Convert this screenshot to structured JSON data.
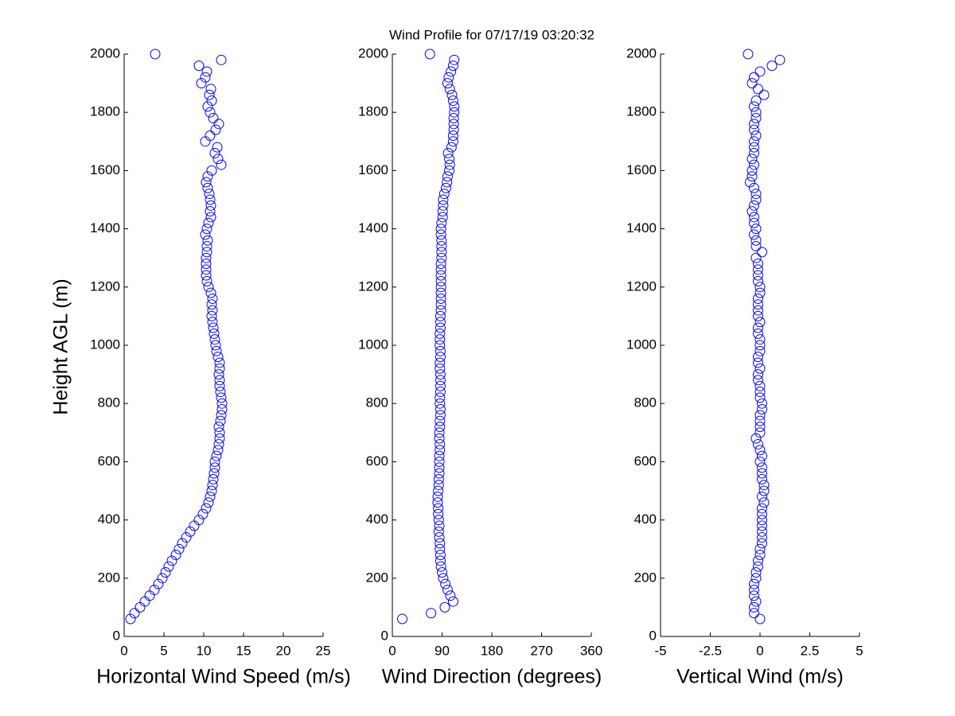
{
  "chart_data": [
    {
      "type": "scatter",
      "x_label": "Horizontal Wind Speed (m/s)",
      "y_label": "Height AGL (m)",
      "xlim": [
        0,
        25
      ],
      "xticks": [
        0,
        5,
        10,
        15,
        20,
        25
      ],
      "ylim": [
        0,
        2000
      ],
      "yticks": [
        0,
        200,
        400,
        600,
        800,
        1000,
        1200,
        1400,
        1600,
        1800,
        2000
      ],
      "x": [
        0.8,
        1.3,
        2,
        2.6,
        3.2,
        3.8,
        4.3,
        4.8,
        5.2,
        5.6,
        6,
        6.5,
        6.9,
        7.3,
        7.8,
        8.3,
        8.8,
        9.4,
        9.9,
        10.3,
        10.6,
        10.8,
        11,
        11.1,
        11.2,
        11.3,
        11.4,
        11.4,
        11.6,
        11.8,
        11.9,
        12,
        12,
        11.9,
        12.1,
        12.2,
        12.3,
        12.3,
        12.2,
        12.1,
        12,
        12,
        11.9,
        12,
        12,
        11.8,
        11.6,
        11.5,
        11.4,
        11.3,
        11.2,
        11.1,
        11,
        11.1,
        11,
        11.1,
        10.9,
        10.6,
        10.4,
        10.3,
        10.3,
        10.3,
        10.3,
        10.4,
        10.4,
        10.5,
        10.2,
        10.4,
        10.6,
        10.9,
        10.8,
        10.9,
        10.8,
        10.7,
        10.5,
        10.3,
        10.5,
        11,
        12.2,
        11.8,
        11.4,
        11.7,
        10.2,
        10.8,
        11.5,
        11.9,
        11.2,
        10.8,
        10.5,
        11,
        10.7,
        10.9,
        9.7,
        10.2,
        10.4,
        9.4,
        12.2,
        3.9
      ],
      "series": [
        {
          "color": "#0000ff",
          "values": [
            60,
            80,
            100,
            120,
            140,
            160,
            180,
            200,
            220,
            240,
            260,
            280,
            300,
            320,
            340,
            360,
            380,
            400,
            420,
            440,
            460,
            480,
            500,
            520,
            540,
            560,
            580,
            600,
            620,
            640,
            660,
            680,
            700,
            720,
            740,
            760,
            780,
            800,
            820,
            840,
            860,
            880,
            900,
            920,
            940,
            960,
            980,
            1000,
            1020,
            1040,
            1060,
            1080,
            1100,
            1120,
            1140,
            1160,
            1180,
            1200,
            1220,
            1240,
            1260,
            1280,
            1300,
            1320,
            1340,
            1360,
            1380,
            1400,
            1420,
            1440,
            1460,
            1480,
            1500,
            1520,
            1540,
            1560,
            1580,
            1600,
            1620,
            1640,
            1660,
            1680,
            1700,
            1720,
            1740,
            1760,
            1780,
            1800,
            1820,
            1840,
            1860,
            1880,
            1900,
            1920,
            1940,
            1960,
            1980,
            2000
          ]
        }
      ]
    },
    {
      "type": "scatter",
      "title": "Wind Profile for  07/17/19 03:20:32",
      "x_label": "Wind Direction (degrees)",
      "xlim": [
        0,
        360
      ],
      "xticks": [
        0,
        90,
        180,
        270,
        360
      ],
      "ylim": [
        0,
        2000
      ],
      "yticks": [
        0,
        200,
        400,
        600,
        800,
        1000,
        1200,
        1400,
        1600,
        1800,
        2000
      ],
      "x": [
        18,
        70,
        95,
        110,
        105,
        100,
        96,
        92,
        90,
        88,
        87,
        87,
        86,
        86,
        85,
        84,
        85,
        84,
        83,
        83,
        82,
        82,
        83,
        84,
        84,
        85,
        85,
        85,
        85,
        86,
        86,
        85,
        85,
        86,
        86,
        87,
        87,
        86,
        86,
        87,
        87,
        87,
        87,
        86,
        86,
        87,
        87,
        86,
        86,
        86,
        87,
        87,
        87,
        88,
        88,
        88,
        88,
        88,
        88,
        88,
        88,
        88,
        89,
        89,
        89,
        89,
        88,
        88,
        89,
        91,
        91,
        92,
        92,
        94,
        97,
        99,
        100,
        103,
        104,
        103,
        101,
        107,
        110,
        110,
        111,
        111,
        111,
        112,
        112,
        110,
        108,
        104,
        100,
        102,
        106,
        110,
        112,
        68
      ],
      "series": [
        {
          "color": "#0000ff",
          "values": [
            60,
            80,
            100,
            120,
            140,
            160,
            180,
            200,
            220,
            240,
            260,
            280,
            300,
            320,
            340,
            360,
            380,
            400,
            420,
            440,
            460,
            480,
            500,
            520,
            540,
            560,
            580,
            600,
            620,
            640,
            660,
            680,
            700,
            720,
            740,
            760,
            780,
            800,
            820,
            840,
            860,
            880,
            900,
            920,
            940,
            960,
            980,
            1000,
            1020,
            1040,
            1060,
            1080,
            1100,
            1120,
            1140,
            1160,
            1180,
            1200,
            1220,
            1240,
            1260,
            1280,
            1300,
            1320,
            1340,
            1360,
            1380,
            1400,
            1420,
            1440,
            1460,
            1480,
            1500,
            1520,
            1540,
            1560,
            1580,
            1600,
            1620,
            1640,
            1660,
            1680,
            1700,
            1720,
            1740,
            1760,
            1780,
            1800,
            1820,
            1840,
            1860,
            1880,
            1900,
            1920,
            1940,
            1960,
            1980,
            2000
          ]
        }
      ]
    },
    {
      "type": "scatter",
      "x_label": "Vertical Wind (m/s)",
      "xlim": [
        -5,
        5
      ],
      "xticks": [
        -5,
        -2.5,
        0,
        2.5,
        5
      ],
      "ylim": [
        0,
        2000
      ],
      "yticks": [
        0,
        200,
        400,
        600,
        800,
        1000,
        1200,
        1400,
        1600,
        1800,
        2000
      ],
      "x": [
        0,
        -0.3,
        -0.3,
        -0.2,
        -0.3,
        -0.3,
        -0.3,
        -0.2,
        -0.2,
        -0.1,
        -0.1,
        0,
        0,
        0.1,
        0.1,
        0.1,
        0.1,
        0.1,
        0.1,
        0.1,
        0.2,
        0.1,
        0.2,
        0.2,
        0.1,
        0.1,
        0.1,
        0,
        0.1,
        0,
        -0.1,
        -0.2,
        0,
        0,
        0,
        0,
        0.1,
        0.1,
        0,
        0,
        0,
        -0.1,
        -0.1,
        0,
        -0.1,
        -0.1,
        0,
        0,
        0,
        -0.1,
        -0.1,
        0,
        -0.1,
        -0.1,
        -0.1,
        -0.1,
        0,
        0,
        -0.1,
        -0.1,
        -0.1,
        -0.1,
        -0.2,
        0.1,
        -0.2,
        -0.2,
        -0.3,
        -0.2,
        -0.3,
        -0.3,
        -0.4,
        -0.3,
        -0.2,
        -0.2,
        -0.3,
        -0.5,
        -0.4,
        -0.4,
        -0.3,
        -0.4,
        -0.3,
        -0.3,
        -0.3,
        -0.2,
        -0.3,
        -0.3,
        -0.2,
        -0.2,
        -0.3,
        -0.2,
        0.2,
        -0.1,
        -0.4,
        -0.3,
        0,
        0.6,
        1.0,
        -0.6
      ],
      "series": [
        {
          "color": "#0000ff",
          "values": [
            60,
            80,
            100,
            120,
            140,
            160,
            180,
            200,
            220,
            240,
            260,
            280,
            300,
            320,
            340,
            360,
            380,
            400,
            420,
            440,
            460,
            480,
            500,
            520,
            540,
            560,
            580,
            600,
            620,
            640,
            660,
            680,
            700,
            720,
            740,
            760,
            780,
            800,
            820,
            840,
            860,
            880,
            900,
            920,
            940,
            960,
            980,
            1000,
            1020,
            1040,
            1060,
            1080,
            1100,
            1120,
            1140,
            1160,
            1180,
            1200,
            1220,
            1240,
            1260,
            1280,
            1300,
            1320,
            1340,
            1360,
            1380,
            1400,
            1420,
            1440,
            1460,
            1480,
            1500,
            1520,
            1540,
            1560,
            1580,
            1600,
            1620,
            1640,
            1660,
            1680,
            1700,
            1720,
            1740,
            1760,
            1780,
            1800,
            1820,
            1840,
            1860,
            1880,
            1900,
            1920,
            1940,
            1960,
            1980,
            2000
          ]
        }
      ]
    }
  ]
}
